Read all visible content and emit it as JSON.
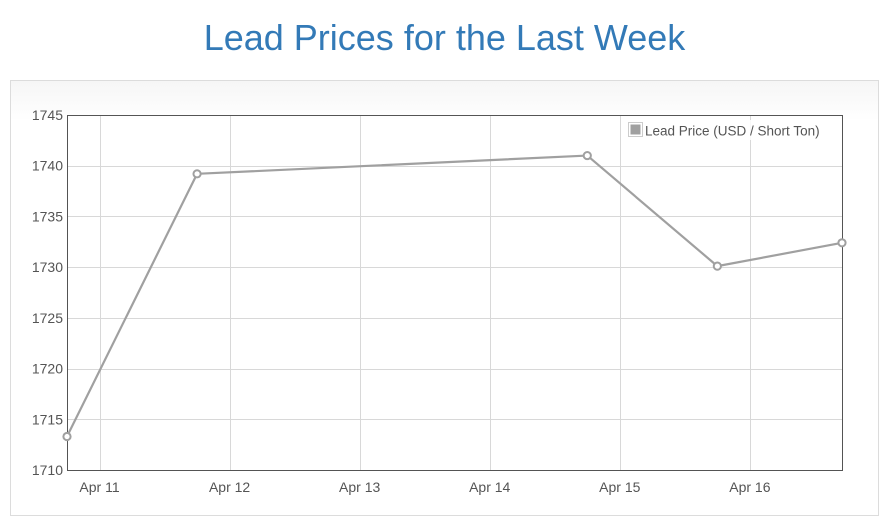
{
  "title": "Lead Prices for the Last Week",
  "chart_data": {
    "type": "line",
    "x_tick_labels": [
      "Apr 11",
      "Apr 12",
      "Apr 13",
      "Apr 14",
      "Apr 15",
      "Apr 16"
    ],
    "y_ticks": [
      1710,
      1715,
      1720,
      1725,
      1730,
      1735,
      1740,
      1745
    ],
    "ylim": [
      1710,
      1745
    ],
    "xlim": [
      "2024-04-10 18:00",
      "2024-04-16 17:00"
    ],
    "grid": true,
    "legend_position": "top-right",
    "series": [
      {
        "name": "Lead Price (USD / Short Ton)",
        "color": "#a0a0a0",
        "points": [
          {
            "x": "2024-04-10 18:00",
            "y": 1713.3
          },
          {
            "x": "2024-04-11 18:00",
            "y": 1739.2
          },
          {
            "x": "2024-04-14 18:00",
            "y": 1741.0
          },
          {
            "x": "2024-04-15 18:00",
            "y": 1730.1
          },
          {
            "x": "2024-04-16 17:00",
            "y": 1732.4
          }
        ]
      }
    ],
    "colors": {
      "axis": "#545454",
      "grid": "#d8d8d8",
      "title": "#337ab7"
    }
  }
}
